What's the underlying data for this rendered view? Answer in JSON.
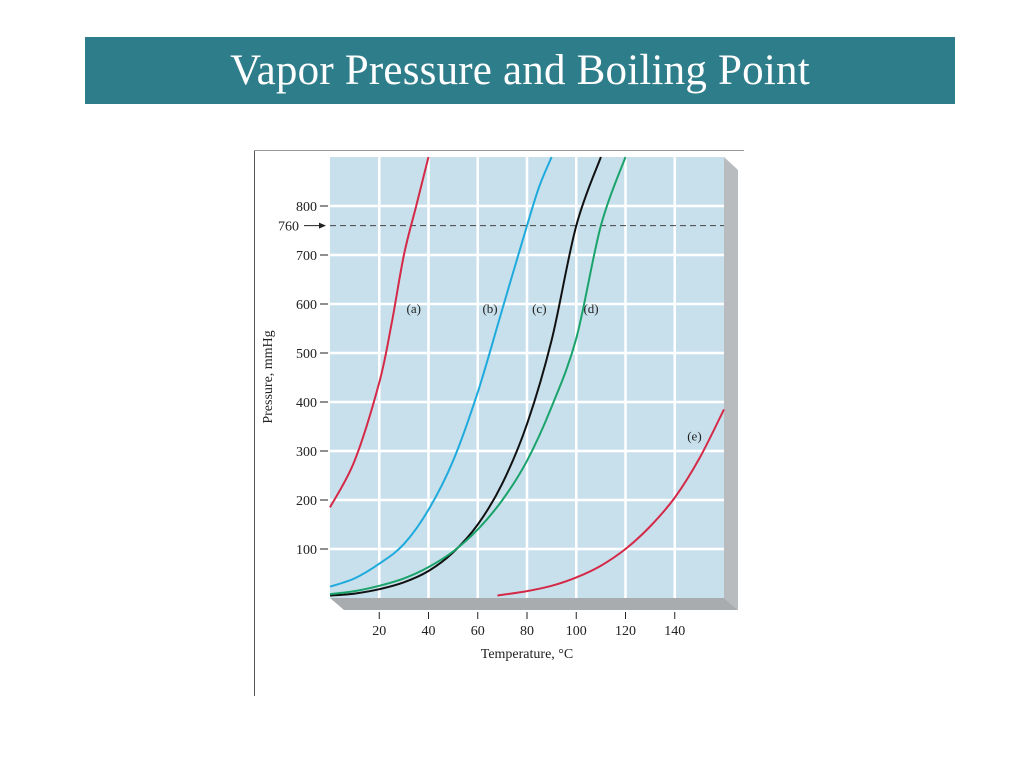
{
  "slide": {
    "title": "Vapor Pressure and Boiling Point",
    "title_bar_color": "#2e7d8a"
  },
  "chart_data": {
    "type": "line",
    "title": "",
    "xlabel": "Temperature, °C",
    "ylabel": "Pressure, mmHg",
    "xlim": [
      0,
      160
    ],
    "ylim": [
      0,
      900
    ],
    "xticks": [
      20,
      40,
      60,
      80,
      100,
      120,
      140
    ],
    "yticks": [
      100,
      200,
      300,
      400,
      500,
      600,
      700,
      800
    ],
    "reference_line": {
      "y": 760,
      "label": "760",
      "style": "dashed"
    },
    "grid": true,
    "plot_background": "#c8e0ec",
    "series": [
      {
        "name": "(a)",
        "color": "#d42a48",
        "x": [
          0,
          10,
          20,
          25,
          30,
          35,
          40
        ],
        "y": [
          185,
          280,
          440,
          560,
          700,
          800,
          900
        ]
      },
      {
        "name": "(b)",
        "color": "#1eaadc",
        "x": [
          0,
          10,
          20,
          30,
          40,
          50,
          60,
          70,
          80,
          85,
          90
        ],
        "y": [
          23,
          40,
          70,
          110,
          180,
          280,
          420,
          590,
          760,
          840,
          900
        ]
      },
      {
        "name": "(c)",
        "color": "#111111",
        "x": [
          0,
          10,
          20,
          30,
          40,
          50,
          60,
          70,
          80,
          90,
          100,
          110
        ],
        "y": [
          5,
          9,
          18,
          32,
          55,
          93,
          150,
          234,
          355,
          526,
          760,
          900
        ]
      },
      {
        "name": "(d)",
        "color": "#1aa36b",
        "x": [
          0,
          10,
          20,
          30,
          40,
          50,
          60,
          70,
          80,
          90,
          100,
          110,
          120
        ],
        "y": [
          8,
          14,
          25,
          40,
          63,
          95,
          140,
          200,
          280,
          390,
          530,
          760,
          900
        ]
      },
      {
        "name": "(e)",
        "color": "#d42a48",
        "x": [
          68,
          80,
          90,
          100,
          110,
          120,
          130,
          140,
          150,
          160
        ],
        "y": [
          5,
          14,
          25,
          42,
          66,
          100,
          146,
          205,
          285,
          385
        ]
      }
    ],
    "curve_labels": [
      {
        "text": "(a)",
        "x": 34,
        "y": 590
      },
      {
        "text": "(b)",
        "x": 65,
        "y": 590
      },
      {
        "text": "(c)",
        "x": 85,
        "y": 590
      },
      {
        "text": "(d)",
        "x": 106,
        "y": 590
      },
      {
        "text": "(e)",
        "x": 148,
        "y": 330
      }
    ]
  }
}
